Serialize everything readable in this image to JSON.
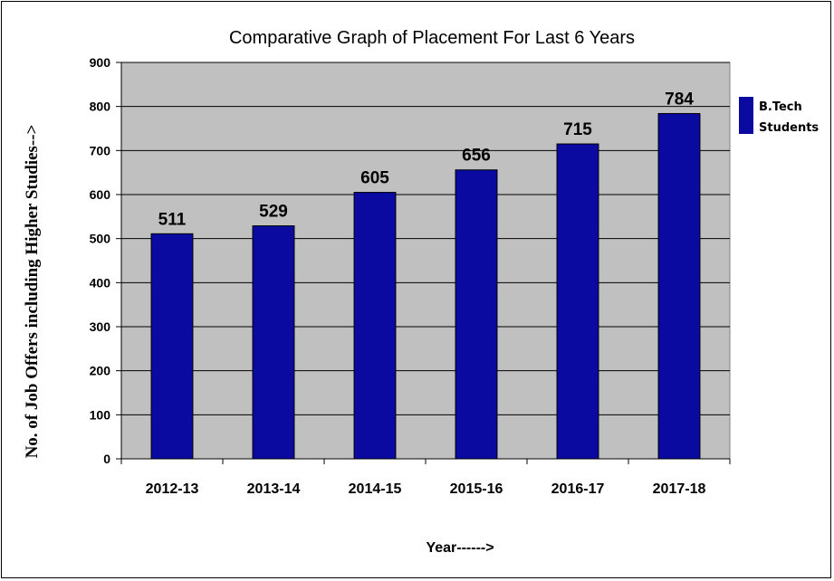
{
  "chart_data": {
    "type": "bar",
    "title": "Comparative Graph of Placement For Last 6 Years",
    "xlabel": "Year------>",
    "ylabel": "No. of Job Offers including Higher Studies-->",
    "categories": [
      "2012-13",
      "2013-14",
      "2014-15",
      "2015-16",
      "2016-17",
      "2017-18"
    ],
    "series": [
      {
        "name": "B.Tech Students",
        "legend_lines": [
          "B.Tech",
          "Students"
        ],
        "values": [
          511,
          529,
          605,
          656,
          715,
          784
        ]
      }
    ],
    "ylim": [
      0,
      900
    ],
    "yticks": [
      0,
      100,
      200,
      300,
      400,
      500,
      600,
      700,
      800,
      900
    ],
    "grid": true,
    "legend_position": "right",
    "colors": {
      "bar": "#0A0AA0",
      "plot_background": "#C0C0C0",
      "gridline": "#000000"
    }
  }
}
